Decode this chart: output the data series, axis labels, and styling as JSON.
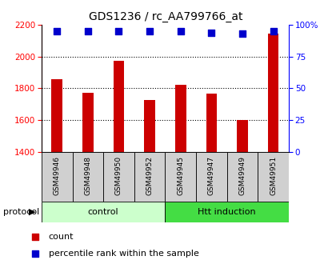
{
  "title": "GDS1236 / rc_AA799766_at",
  "samples": [
    "GSM49946",
    "GSM49948",
    "GSM49950",
    "GSM49952",
    "GSM49945",
    "GSM49947",
    "GSM49949",
    "GSM49951"
  ],
  "counts": [
    1855,
    1770,
    1975,
    1725,
    1820,
    1765,
    1600,
    2145
  ],
  "percentiles": [
    95,
    95,
    95,
    95,
    95,
    94,
    93,
    95
  ],
  "ylim_left": [
    1400,
    2200
  ],
  "ylim_right": [
    0,
    100
  ],
  "yticks_left": [
    1400,
    1600,
    1800,
    2000,
    2200
  ],
  "yticks_right": [
    0,
    25,
    50,
    75,
    100
  ],
  "bar_color": "#cc0000",
  "dot_color": "#0000cc",
  "n_control": 4,
  "n_htt": 4,
  "control_label": "control",
  "htt_label": "Htt induction",
  "protocol_label": "protocol",
  "legend_count": "count",
  "legend_percentile": "percentile rank within the sample",
  "control_bg": "#ccffcc",
  "htt_bg": "#44dd44",
  "xlabel_bg": "#d0d0d0",
  "title_fontsize": 10,
  "tick_fontsize": 7.5,
  "sample_fontsize": 6.5,
  "legend_fontsize": 8,
  "protocol_fontsize": 8,
  "dot_size": 40,
  "bar_width": 0.35
}
